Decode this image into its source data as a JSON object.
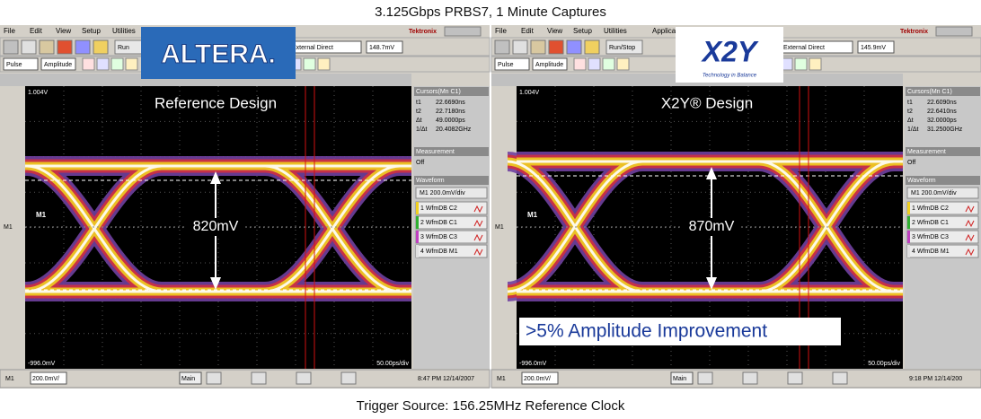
{
  "title": "3.125Gbps PRBS7, 1 Minute Captures",
  "caption": "Trigger Source: 156.25MHz Reference Clock",
  "panels": [
    {
      "menu": [
        "File",
        "Edit",
        "View",
        "Setup",
        "Utilities"
      ],
      "brand": "Tektronix",
      "logo": "ALTERA.",
      "run": "Run",
      "trigger": "External Direct",
      "level": "148.7mV",
      "row2": [
        "Pulse",
        "Amplitude"
      ],
      "top_label": "1.004V",
      "bottom_label": "-996.0mV",
      "timebase": "50.00ps/div",
      "marker": "M1",
      "heading": "Reference Design",
      "amplitude": "820mV",
      "cursors": {
        "title": "Cursors(Mn C1)",
        "rows": [
          [
            "t1",
            "22.6690ns"
          ],
          [
            "t2",
            "22.7180ns"
          ],
          [
            "Δt",
            "49.0000ps"
          ],
          [
            "1/Δt",
            "20.4082GHz"
          ]
        ]
      },
      "measurement": {
        "title": "Measurement",
        "value": "Off"
      },
      "waveform": {
        "title": "Waveform",
        "scale": "M1 200.0mV/div",
        "items": [
          "1 WfmDB C2",
          "2 WfmDB C1",
          "3 WfmDB C3",
          "4 WfmDB M1"
        ]
      },
      "status": {
        "channel": "M1",
        "scale": "200.0mV/",
        "main": "Main",
        "time": "8:47 PM 12/14/2007"
      }
    },
    {
      "menu": [
        "File",
        "Edit",
        "View",
        "Setup",
        "Utilities",
        "Applica"
      ],
      "brand": "Tektronix",
      "logo": "X2Y",
      "logo_tagline": "Technology in Balance",
      "run": "Run/Stop",
      "trigger": "External Direct",
      "level": "145.9mV",
      "row2": [
        "Pulse",
        "Amplitude"
      ],
      "top_label": "1.004V",
      "bottom_label": "-996.0mV",
      "timebase": "50.00ps/div",
      "marker": "M1",
      "heading": "X2Y® Design",
      "amplitude": "870mV",
      "note": ">5% Amplitude Improvement",
      "cursors": {
        "title": "Cursors(Mn C1)",
        "rows": [
          [
            "t1",
            "22.6090ns"
          ],
          [
            "t2",
            "22.6410ns"
          ],
          [
            "Δt",
            "32.0000ps"
          ],
          [
            "1/Δt",
            "31.2500GHz"
          ]
        ]
      },
      "measurement": {
        "title": "Measurement",
        "value": "Off"
      },
      "waveform": {
        "title": "Waveform",
        "scale": "M1 200.0mV/div",
        "items": [
          "1 WfmDB C2",
          "2 WfmDB C1",
          "3 WfmDB C3",
          "4 WfmDB M1"
        ]
      },
      "status": {
        "channel": "M1",
        "scale": "200.0mV/",
        "main": "Main",
        "time": "9:18 PM 12/14/200"
      }
    }
  ]
}
